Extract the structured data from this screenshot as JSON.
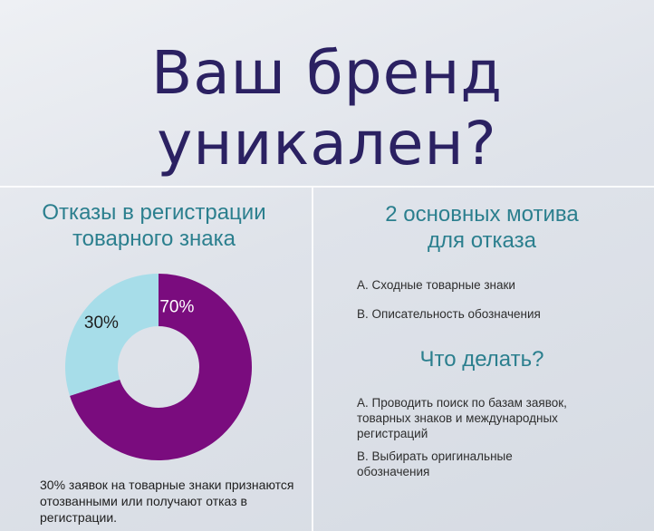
{
  "title": {
    "line1": "Ваш бренд",
    "line2": "уникален?"
  },
  "left": {
    "heading_line1": "Отказы в регистрации",
    "heading_line2": "товарного знака",
    "footnote": "30% заявок на товарные знаки признаются отозванными или получают отказ в регистрации."
  },
  "right": {
    "heading_line1": "2 основных мотива",
    "heading_line2": "для отказа",
    "reasons": [
      "A. Сходные товарные знаки",
      "B. Описательность обозначения"
    ],
    "todo_heading": "Что делать?",
    "todo": [
      "A. Проводить поиск по базам заявок, товарных знаков и международных регистраций",
      "B. Выбирать оригинальные обозначения"
    ]
  },
  "colors": {
    "purple": "#7a0c7e",
    "light_blue": "#a7dde9",
    "teal": "#2b7f8e",
    "navy": "#2b2162"
  },
  "chart_data": {
    "type": "pie",
    "variant": "donut",
    "categories": [
      "70%",
      "30%"
    ],
    "values": [
      70,
      30
    ],
    "labels": [
      "70%",
      "30%"
    ],
    "colors": [
      "#7a0c7e",
      "#a7dde9"
    ]
  }
}
